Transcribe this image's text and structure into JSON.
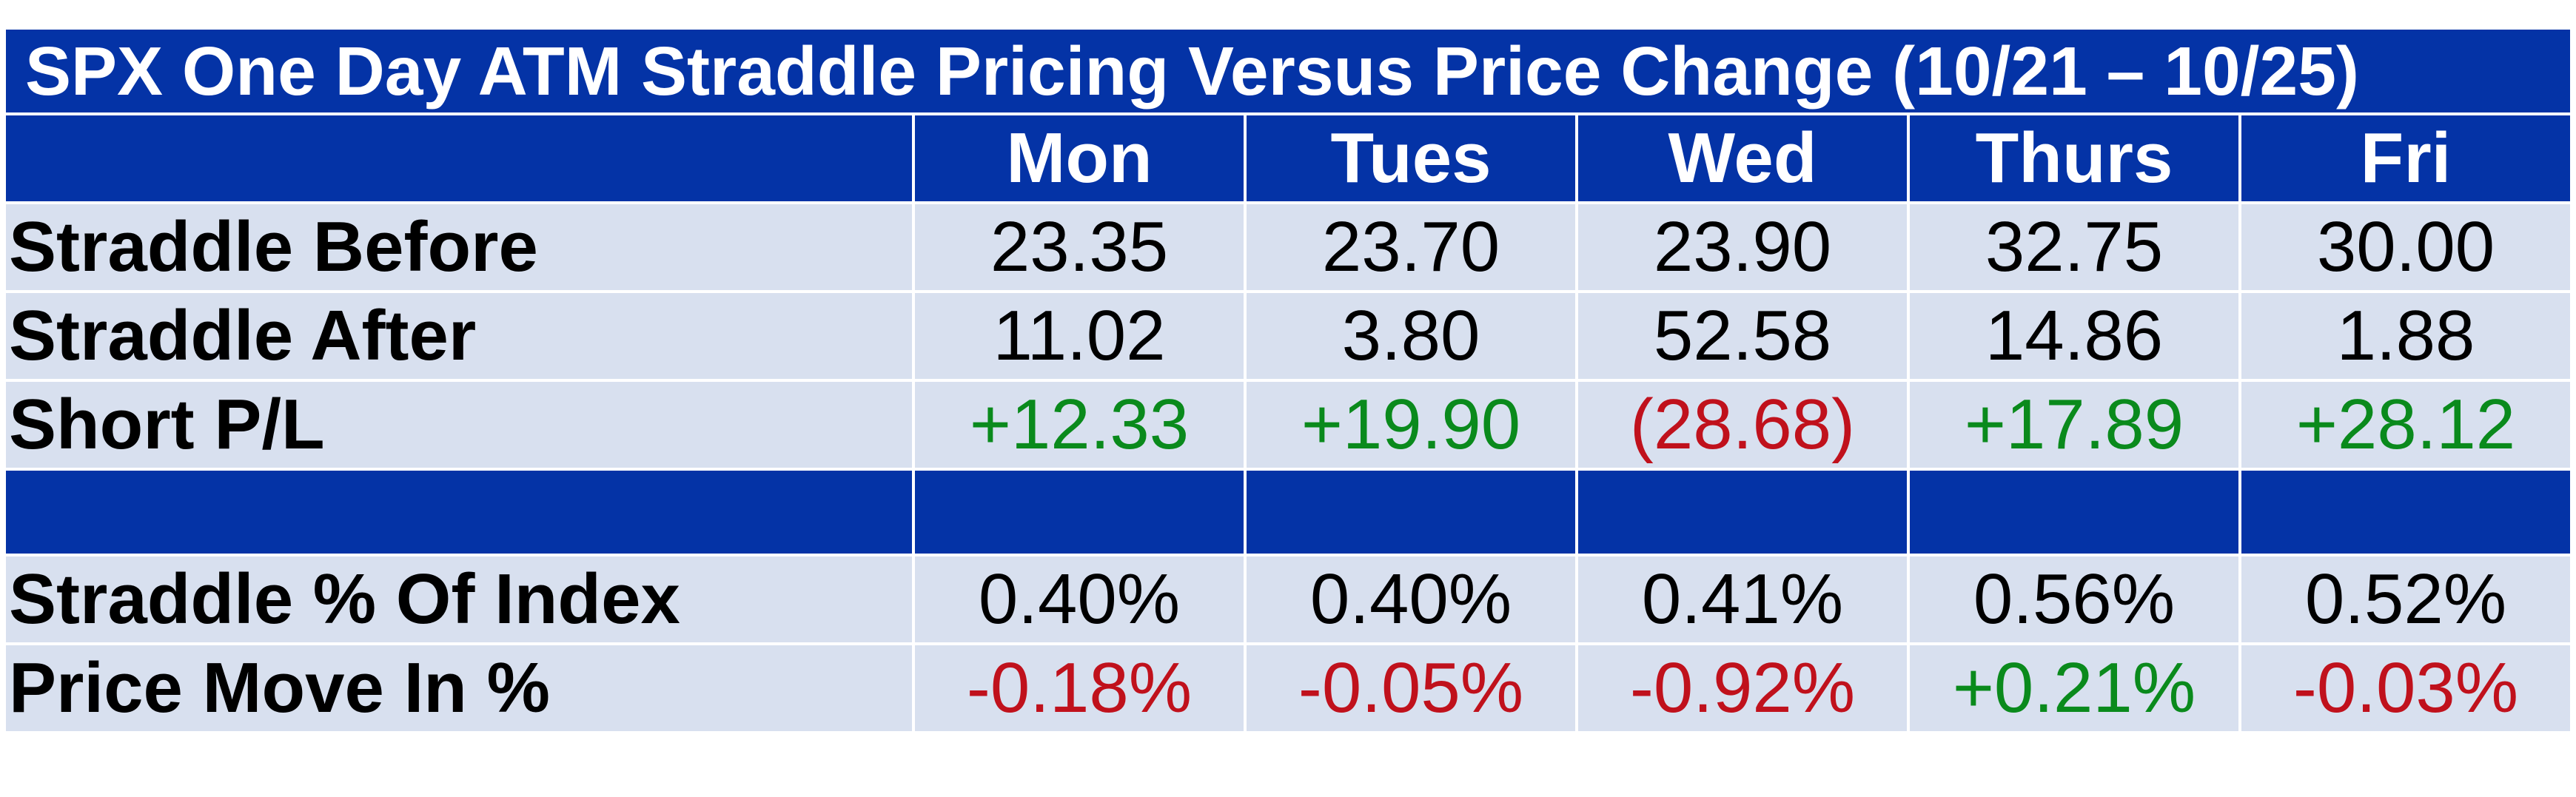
{
  "title": "SPX One Day ATM Straddle Pricing Versus Price Change (10/21 – 10/25)",
  "days": [
    "Mon",
    "Tues",
    "Wed",
    "Thurs",
    "Fri"
  ],
  "rows": [
    {
      "label": "Straddle Before",
      "values": [
        "23.35",
        "23.70",
        "23.90",
        "32.75",
        "30.00"
      ]
    },
    {
      "label": "Straddle After",
      "values": [
        "11.02",
        "3.80",
        "52.58",
        "14.86",
        "1.88"
      ]
    },
    {
      "label": "Short P/L",
      "values": [
        "+12.33",
        "+19.90",
        "(28.68)",
        "+17.89",
        "+28.12"
      ]
    },
    {
      "label": "Straddle % Of Index",
      "values": [
        "0.40%",
        "0.40%",
        "0.41%",
        "0.56%",
        "0.52%"
      ]
    },
    {
      "label": "Price Move In %",
      "values": [
        "-0.18%",
        "-0.05%",
        "-0.92%",
        "+0.21%",
        "-0.03%"
      ]
    }
  ],
  "colors": {
    "header_blue": "#0433a6",
    "row_fill": "#d8e0ef",
    "positive_green": "#0a8a1c",
    "negative_red": "#c0111c"
  }
}
